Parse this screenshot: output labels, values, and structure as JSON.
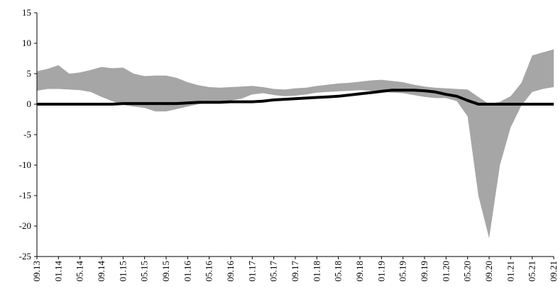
{
  "chart_data": {
    "type": "area",
    "title": "",
    "xlabel": "",
    "ylabel": "",
    "ylim": [
      -25,
      15
    ],
    "yticks": [
      15,
      10,
      5,
      0,
      -5,
      -10,
      -15,
      -20,
      -25
    ],
    "grid": false,
    "legend": "none",
    "x_tick_labels": [
      "09.13",
      "01.14",
      "05.14",
      "09.14",
      "01.15",
      "05.15",
      "09.15",
      "01.16",
      "05.16",
      "09.16",
      "01.17",
      "05.17",
      "09.17",
      "01.18",
      "05.18",
      "09.18",
      "01.19",
      "05.19",
      "09.19",
      "01.20",
      "05.20",
      "09.20",
      "01.21",
      "05.21",
      "09.21"
    ],
    "x": [
      "09.13",
      "11.13",
      "01.14",
      "03.14",
      "05.14",
      "07.14",
      "09.14",
      "11.14",
      "01.15",
      "03.15",
      "05.15",
      "07.15",
      "09.15",
      "11.15",
      "01.16",
      "03.16",
      "05.16",
      "07.16",
      "09.16",
      "11.16",
      "01.17",
      "03.17",
      "05.17",
      "07.17",
      "09.17",
      "11.17",
      "01.18",
      "03.18",
      "05.18",
      "07.18",
      "09.18",
      "11.18",
      "01.19",
      "03.19",
      "05.19",
      "07.19",
      "09.19",
      "11.19",
      "01.20",
      "03.20",
      "05.20",
      "07.20",
      "09.20",
      "11.20",
      "01.21",
      "03.21",
      "05.21",
      "07.21",
      "09.21"
    ],
    "series": [
      {
        "kind": "band",
        "upper": [
          5.4,
          5.8,
          6.4,
          5.0,
          5.2,
          5.6,
          6.1,
          5.9,
          6.0,
          5.0,
          4.6,
          4.7,
          4.7,
          4.3,
          3.6,
          3.1,
          2.8,
          2.7,
          2.8,
          2.9,
          3.0,
          2.8,
          2.5,
          2.4,
          2.6,
          2.7,
          3.0,
          3.2,
          3.4,
          3.5,
          3.7,
          3.9,
          4.0,
          3.8,
          3.6,
          3.2,
          2.9,
          2.7,
          2.6,
          2.5,
          2.4,
          1.2,
          0.0,
          0.4,
          1.3,
          3.5,
          8.0,
          8.5,
          9.0
        ],
        "lower": [
          2.2,
          2.5,
          2.5,
          2.4,
          2.3,
          2.0,
          1.2,
          0.5,
          -0.1,
          -0.4,
          -0.6,
          -1.2,
          -1.2,
          -0.8,
          -0.4,
          0.0,
          0.2,
          0.4,
          0.6,
          0.9,
          1.6,
          1.8,
          1.5,
          1.3,
          1.4,
          1.6,
          1.9,
          2.0,
          2.1,
          2.2,
          2.3,
          2.2,
          2.1,
          1.9,
          1.8,
          1.5,
          1.2,
          1.0,
          1.0,
          0.5,
          -2.0,
          -15.0,
          -22.0,
          -10.0,
          -3.8,
          -0.2,
          2.0,
          2.5,
          2.8
        ],
        "color": "#a6a6a6"
      },
      {
        "kind": "line",
        "values": [
          0,
          0,
          0,
          0,
          0,
          0,
          0,
          0,
          0.1,
          0.1,
          0.1,
          0.1,
          0.1,
          0.1,
          0.2,
          0.3,
          0.3,
          0.3,
          0.4,
          0.4,
          0.4,
          0.5,
          0.7,
          0.8,
          0.9,
          1.0,
          1.1,
          1.2,
          1.3,
          1.5,
          1.7,
          1.9,
          2.1,
          2.3,
          2.3,
          2.3,
          2.2,
          2.0,
          1.6,
          1.3,
          0.6,
          0.0,
          0.0,
          0.0,
          0.0,
          0.0,
          0.0,
          0.0,
          0.0
        ],
        "color": "#000000"
      }
    ]
  }
}
